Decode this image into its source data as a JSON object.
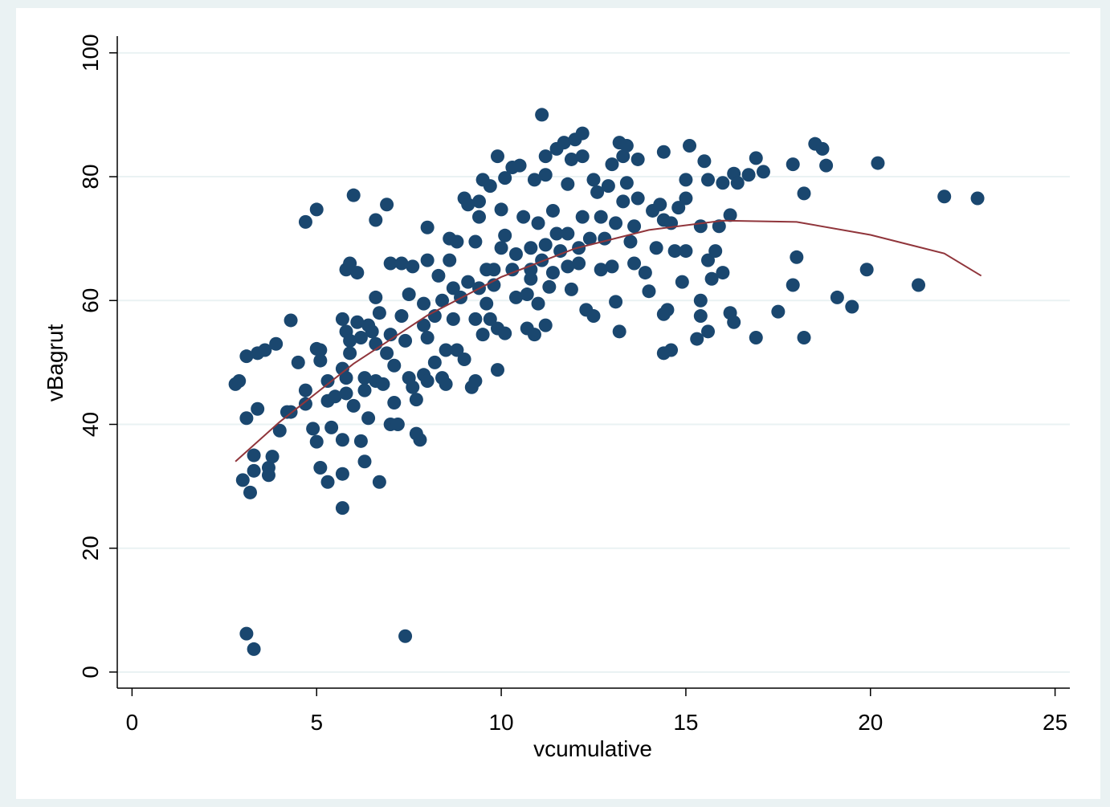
{
  "chart_data": {
    "type": "scatter",
    "xlabel": "vcumulative",
    "ylabel": "vBagrut",
    "color": "#1a476f",
    "xlim": [
      -0.4,
      25.4
    ],
    "ylim": [
      -2.6,
      102.7
    ],
    "xticks": [
      0,
      5,
      10,
      15,
      20,
      25
    ],
    "yticks": [
      0,
      20,
      40,
      60,
      80,
      100
    ],
    "grid": true,
    "x": [
      2.8,
      2.9,
      3.0,
      3.1,
      3.1,
      3.2,
      3.3,
      3.3,
      3.4,
      3.4,
      3.6,
      3.7,
      3.7,
      3.8,
      3.9,
      4.0,
      4.2,
      4.3,
      4.3,
      4.5,
      4.7,
      4.7,
      4.7,
      5.0,
      4.9,
      5.0,
      5.1,
      5.1,
      5.0,
      5.1,
      5.3,
      5.3,
      5.3,
      5.4,
      5.5,
      5.7,
      5.7,
      5.7,
      5.7,
      5.7,
      5.8,
      5.8,
      5.8,
      5.8,
      5.9,
      5.9,
      5.9,
      6.0,
      6.0,
      6.1,
      6.1,
      6.2,
      6.2,
      6.3,
      6.3,
      6.3,
      6.4,
      6.4,
      6.5,
      6.6,
      6.6,
      6.6,
      6.6,
      6.7,
      6.7,
      6.8,
      6.9,
      6.9,
      7.0,
      7.0,
      7.0,
      7.1,
      7.1,
      7.2,
      7.3,
      7.3,
      7.4,
      7.5,
      7.5,
      7.6,
      7.6,
      7.7,
      7.7,
      7.8,
      7.9,
      7.9,
      7.9,
      8.0,
      8.0,
      8.0,
      8.0,
      8.2,
      8.2,
      8.3,
      8.4,
      8.4,
      8.5,
      8.5,
      8.6,
      8.6,
      8.7,
      8.7,
      8.8,
      8.8,
      8.9,
      9.0,
      9.0,
      9.1,
      9.1,
      9.2,
      9.3,
      9.3,
      9.3,
      9.4,
      9.4,
      9.4,
      9.5,
      9.5,
      9.6,
      9.6,
      9.7,
      9.7,
      9.8,
      9.8,
      9.9,
      9.9,
      9.9,
      10.0,
      10.0,
      10.1,
      10.1,
      10.1,
      10.3,
      10.3,
      10.4,
      10.4,
      10.5,
      10.6,
      10.7,
      10.7,
      10.8,
      10.8,
      10.8,
      10.9,
      10.9,
      11.0,
      11.0,
      11.1,
      11.1,
      11.2,
      11.2,
      11.2,
      11.2,
      11.3,
      11.4,
      11.4,
      11.5,
      11.5,
      11.6,
      11.7,
      11.8,
      11.8,
      11.8,
      11.9,
      11.9,
      12.0,
      12.1,
      12.1,
      12.2,
      12.2,
      12.2,
      12.3,
      12.4,
      12.5,
      12.5,
      12.6,
      12.7,
      12.7,
      12.8,
      12.9,
      13.0,
      13.0,
      13.1,
      13.1,
      13.2,
      13.2,
      13.3,
      13.3,
      13.4,
      13.4,
      13.5,
      13.6,
      13.6,
      13.7,
      13.7,
      13.9,
      14.0,
      14.1,
      14.2,
      14.3,
      14.4,
      14.4,
      14.4,
      14.4,
      14.5,
      14.6,
      14.6,
      14.7,
      14.8,
      14.9,
      15.0,
      15.0,
      15.0,
      15.1,
      15.3,
      15.4,
      15.4,
      15.4,
      15.5,
      15.6,
      15.6,
      15.6,
      15.7,
      15.8,
      15.9,
      16.0,
      16.0,
      16.2,
      16.2,
      16.3,
      16.3,
      16.4,
      16.7,
      16.9,
      16.9,
      17.1,
      17.5,
      17.9,
      17.9,
      18.0,
      18.2,
      18.2,
      18.5,
      18.7,
      18.8,
      19.1,
      19.5,
      19.9,
      20.2,
      21.3,
      22.0,
      22.9,
      3.1,
      3.3,
      7.4
    ],
    "y": [
      46.5,
      47,
      31,
      41,
      51,
      29,
      35,
      32.5,
      42.5,
      51.5,
      52,
      33,
      31.8,
      34.8,
      53,
      39,
      42,
      42,
      56.8,
      50,
      72.7,
      45.5,
      43.3,
      74.7,
      39.3,
      52.2,
      52,
      50.3,
      37.2,
      33,
      30.7,
      47,
      43.8,
      39.5,
      44.5,
      37.5,
      26.5,
      32,
      49,
      57,
      65,
      47.5,
      45,
      55,
      53.5,
      51.5,
      66,
      77,
      43,
      56.5,
      64.5,
      37.3,
      54,
      45.5,
      34,
      47.5,
      41,
      56,
      55,
      73,
      60.5,
      53,
      47,
      58,
      30.7,
      46.5,
      75.5,
      51.5,
      66,
      54.5,
      40,
      43.5,
      49.5,
      40,
      66,
      57.5,
      53.5,
      61,
      47.5,
      46,
      65.5,
      44,
      38.5,
      37.5,
      56,
      59.5,
      48,
      66.5,
      71.8,
      54,
      47,
      57.5,
      50,
      64,
      60,
      47.5,
      46.5,
      52,
      66.5,
      70,
      57,
      62,
      69.5,
      52,
      60.5,
      50.5,
      76.5,
      75.5,
      63,
      46,
      69.5,
      57,
      47,
      73.5,
      76,
      62,
      79.5,
      54.5,
      65,
      59.5,
      78.5,
      57,
      62.5,
      65,
      83.3,
      55.5,
      48.8,
      68.5,
      74.7,
      79.8,
      70.5,
      54.7,
      81.5,
      65,
      60.5,
      67.5,
      81.8,
      73.5,
      61,
      55.5,
      65,
      68.5,
      63.5,
      79.5,
      54.5,
      72.5,
      59.5,
      66.5,
      90,
      83.3,
      80.3,
      69,
      56,
      62.2,
      64.5,
      74.5,
      84.5,
      70.8,
      68,
      85.5,
      78.8,
      70.8,
      65.5,
      82.8,
      61.8,
      86,
      68.5,
      66,
      87,
      83.3,
      73.5,
      58.5,
      70,
      79.5,
      57.5,
      77.5,
      65,
      73.5,
      70,
      78.5,
      82,
      65.5,
      72.5,
      59.8,
      85.5,
      55,
      83.3,
      76,
      85,
      79,
      69.5,
      72,
      66,
      82.8,
      76.5,
      64.5,
      61.5,
      74.5,
      68.5,
      75.5,
      84,
      73,
      57.8,
      51.5,
      58.5,
      72.5,
      52,
      68,
      75,
      63,
      79.5,
      76.5,
      68,
      85,
      53.8,
      57.5,
      60,
      72,
      82.5,
      79.5,
      66.5,
      55,
      63.5,
      68,
      72,
      79,
      64.5,
      58,
      73.8,
      80.5,
      56.5,
      79,
      80.3,
      54,
      83,
      80.8,
      58.2,
      82,
      62.5,
      67,
      77.3,
      54,
      85.3,
      84.5,
      81.8,
      60.5,
      59,
      65,
      82.2,
      62.5,
      76.8,
      76.5,
      6.2,
      3.7,
      5.8
    ],
    "fit": {
      "type": "line",
      "color": "#90353b",
      "x": [
        2.8,
        4,
        6,
        8,
        10,
        12,
        14,
        16,
        18,
        20,
        22,
        23
      ],
      "y": [
        34,
        40.4,
        49.8,
        57.6,
        63.8,
        68.4,
        71.4,
        72.9,
        72.7,
        70.6,
        67.6,
        64
      ]
    }
  }
}
